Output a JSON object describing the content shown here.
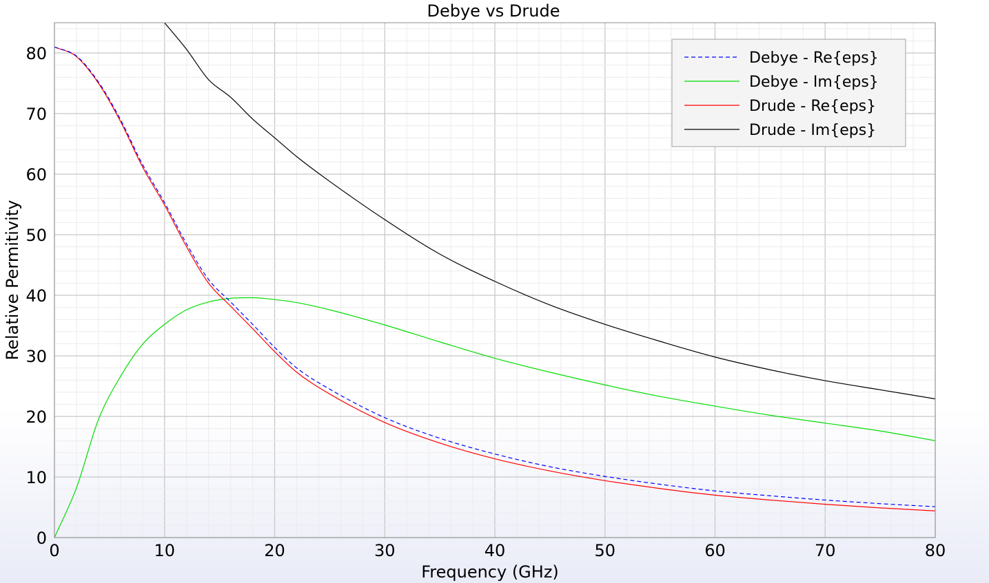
{
  "chart_data": {
    "type": "line",
    "title": "Debye vs Drude",
    "xlabel": "Frequency (GHz)",
    "ylabel": "Relative Permitivity",
    "xlim": [
      0,
      80
    ],
    "ylim": [
      0,
      85
    ],
    "xticks": [
      0,
      10,
      20,
      30,
      40,
      50,
      60,
      70,
      80
    ],
    "yticks": [
      0,
      10,
      20,
      30,
      40,
      50,
      60,
      70,
      80
    ],
    "grid": true,
    "legend_position": "top-right",
    "x": [
      0,
      2,
      4,
      6,
      8,
      10,
      12,
      14,
      16,
      18,
      20,
      22,
      25,
      30,
      35,
      40,
      45,
      50,
      55,
      60,
      65,
      70,
      75,
      80
    ],
    "series": [
      {
        "name": "Debye - Re{eps}",
        "color": "#0000ff",
        "style": "dashed",
        "values": [
          81.0,
          79.5,
          75.2,
          69.0,
          61.6,
          55.3,
          48.5,
          42.6,
          38.9,
          35.2,
          31.4,
          28.0,
          24.5,
          19.8,
          16.4,
          13.8,
          11.7,
          10.1,
          8.8,
          7.7,
          6.9,
          6.2,
          5.6,
          5.1
        ]
      },
      {
        "name": "Debye - Im{eps}",
        "color": "#00dd00",
        "style": "solid",
        "values": [
          0.0,
          8.2,
          19.5,
          26.6,
          31.9,
          35.2,
          37.6,
          38.9,
          39.5,
          39.6,
          39.3,
          38.8,
          37.6,
          35.1,
          32.3,
          29.6,
          27.3,
          25.2,
          23.3,
          21.7,
          20.2,
          18.9,
          17.6,
          16.0
        ]
      },
      {
        "name": "Drude - Re{eps}",
        "color": "#ff0000",
        "style": "solid",
        "values": [
          81.0,
          79.4,
          75.0,
          68.7,
          61.2,
          54.9,
          48.0,
          42.0,
          38.2,
          34.5,
          30.7,
          27.3,
          23.7,
          19.0,
          15.6,
          13.0,
          11.0,
          9.4,
          8.1,
          7.0,
          6.2,
          5.5,
          4.9,
          4.4
        ]
      },
      {
        "name": "Drude - Im{eps}",
        "color": "#000000",
        "style": "solid",
        "values": [
          null,
          null,
          null,
          null,
          null,
          85.0,
          80.6,
          75.6,
          72.7,
          69.1,
          66.0,
          62.9,
          58.8,
          52.5,
          46.8,
          42.3,
          38.4,
          35.2,
          32.4,
          29.8,
          27.7,
          25.9,
          24.4,
          22.9
        ]
      }
    ]
  }
}
